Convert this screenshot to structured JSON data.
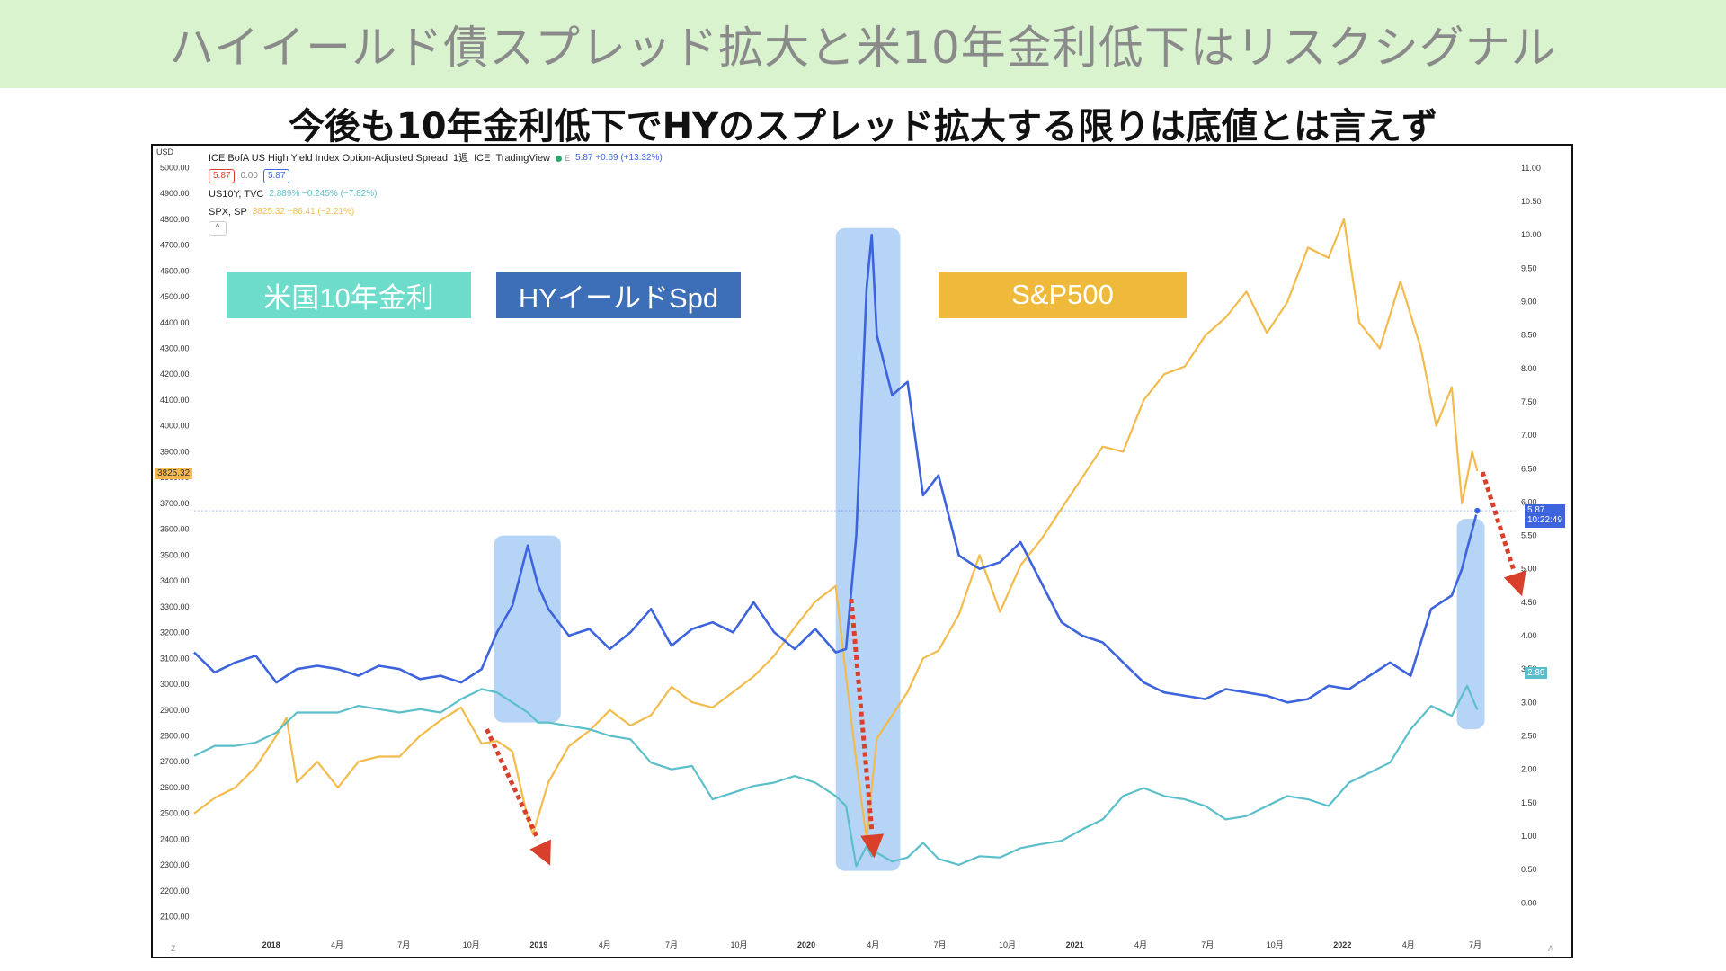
{
  "banner": {
    "title": "ハイイールド債スプレッド拡大と米10年金利低下はリスクシグナル"
  },
  "subtitle": "今後も10年金利低下でHYのスプレッド拡大する限りは底値とは言えず",
  "legend": {
    "currency": "USD",
    "main_title": "ICE BofA US High Yield Index Option-Adjusted Spread",
    "interval": "1週",
    "exchange": "ICE",
    "source": "TradingView",
    "e_label": "E",
    "main_change": "5.87 +0.69 (+13.32%)",
    "box_red": "5.87",
    "box_mid": "0.00",
    "box_blue": "5.87",
    "us10y_name": "US10Y, TVC",
    "us10y_values": "2.889%  −0.245% (−7.82%)",
    "spx_name": "SPX, SP",
    "spx_values": "3825.32  −86.41 (−2.21%)",
    "collapse": "^"
  },
  "labels": {
    "us10y": "米国10年金利",
    "hy": "HYイールドSpd",
    "spx": "S&P500"
  },
  "tags": {
    "spx_price": "3825.32",
    "hy_price": "5.87",
    "hy_time": "10:22:49",
    "us10y_price": "2.89"
  },
  "corners": {
    "left": "Z",
    "right": "A"
  },
  "colors": {
    "hy": "#3d64dc",
    "us10y": "#5bbfc9",
    "spx": "#f2bb4c",
    "highlight": "#a9cdf5",
    "arrow": "#d9402c",
    "banner_bg": "#d9f3cf",
    "label_us10y": "#6ddccb",
    "label_hy": "#3d6fb8",
    "label_spx": "#efba3b"
  },
  "chart_data": {
    "type": "line",
    "x_ticks": [
      "2018",
      "4月",
      "7月",
      "10月",
      "2019",
      "4月",
      "7月",
      "10月",
      "2020",
      "4月",
      "7月",
      "10月",
      "2021",
      "4月",
      "7月",
      "10月",
      "2022",
      "4月",
      "7月"
    ],
    "left_axis": {
      "ticks": [
        "2100.00",
        "2200.00",
        "2300.00",
        "2400.00",
        "2500.00",
        "2600.00",
        "2700.00",
        "2800.00",
        "2900.00",
        "3000.00",
        "3100.00",
        "3200.00",
        "3300.00",
        "3400.00",
        "3500.00",
        "3600.00",
        "3700.00",
        "3800.00",
        "3900.00",
        "4000.00",
        "4100.00",
        "4200.00",
        "4300.00",
        "4400.00",
        "4500.00",
        "4600.00",
        "4700.00",
        "4800.00",
        "4900.00",
        "5000.00"
      ],
      "ylim": [
        2050,
        5050
      ]
    },
    "right_axis": {
      "ticks": [
        "0.00",
        "0.50",
        "1.00",
        "1.50",
        "2.00",
        "2.50",
        "3.00",
        "3.50",
        "4.00",
        "4.50",
        "5.00",
        "5.50",
        "6.00",
        "6.50",
        "7.00",
        "7.50",
        "8.00",
        "8.50",
        "9.00",
        "9.50",
        "10.00",
        "10.50",
        "11.00"
      ],
      "ylim": [
        -0.4,
        11.2
      ]
    },
    "series": [
      {
        "name": "ICE BofA US High Yield Index Option-Adjusted Spread",
        "axis": "right",
        "x": [
          "2017-09-18",
          "2017-10-16",
          "2017-11-13",
          "2017-12-11",
          "2018-01-08",
          "2018-02-05",
          "2018-03-05",
          "2018-04-02",
          "2018-04-30",
          "2018-05-28",
          "2018-06-25",
          "2018-07-23",
          "2018-08-20",
          "2018-09-17",
          "2018-10-15",
          "2018-11-05",
          "2018-11-26",
          "2018-12-17",
          "2018-12-31",
          "2019-01-14",
          "2019-02-11",
          "2019-03-11",
          "2019-04-08",
          "2019-05-06",
          "2019-06-03",
          "2019-07-01",
          "2019-07-29",
          "2019-08-26",
          "2019-09-23",
          "2019-10-21",
          "2019-11-18",
          "2019-12-16",
          "2020-01-13",
          "2020-02-10",
          "2020-02-24",
          "2020-03-09",
          "2020-03-23",
          "2020-03-30",
          "2020-04-06",
          "2020-04-27",
          "2020-05-18",
          "2020-06-08",
          "2020-06-29",
          "2020-07-27",
          "2020-08-24",
          "2020-09-21",
          "2020-10-19",
          "2020-11-16",
          "2020-12-14",
          "2021-01-11",
          "2021-02-08",
          "2021-03-08",
          "2021-04-05",
          "2021-05-03",
          "2021-05-31",
          "2021-06-28",
          "2021-07-26",
          "2021-08-23",
          "2021-09-20",
          "2021-10-18",
          "2021-11-15",
          "2021-12-13",
          "2022-01-10",
          "2022-02-07",
          "2022-03-07",
          "2022-04-04",
          "2022-05-02",
          "2022-05-30",
          "2022-06-13",
          "2022-06-20",
          "2022-07-04"
        ],
        "y": [
          3.75,
          3.45,
          3.6,
          3.7,
          3.3,
          3.5,
          3.55,
          3.5,
          3.4,
          3.55,
          3.5,
          3.35,
          3.4,
          3.3,
          3.5,
          4.05,
          4.45,
          5.35,
          4.75,
          4.4,
          4.0,
          4.1,
          3.8,
          4.05,
          4.4,
          3.85,
          4.1,
          4.2,
          4.05,
          4.5,
          4.05,
          3.8,
          4.1,
          3.75,
          3.8,
          5.5,
          9.2,
          10.0,
          8.5,
          7.6,
          7.8,
          6.1,
          6.4,
          5.2,
          5.0,
          5.1,
          5.4,
          4.8,
          4.2,
          4.0,
          3.9,
          3.6,
          3.3,
          3.15,
          3.1,
          3.05,
          3.2,
          3.15,
          3.1,
          3.0,
          3.05,
          3.25,
          3.2,
          3.4,
          3.6,
          3.4,
          4.4,
          4.6,
          5.0,
          5.3,
          5.87
        ]
      },
      {
        "name": "US10Y, TVC",
        "axis": "right",
        "x": [
          "2017-09-18",
          "2017-10-16",
          "2017-11-13",
          "2017-12-11",
          "2018-01-08",
          "2018-02-05",
          "2018-03-05",
          "2018-04-02",
          "2018-04-30",
          "2018-05-28",
          "2018-06-25",
          "2018-07-23",
          "2018-08-20",
          "2018-09-17",
          "2018-10-15",
          "2018-11-05",
          "2018-11-26",
          "2018-12-17",
          "2018-12-31",
          "2019-01-14",
          "2019-02-11",
          "2019-03-11",
          "2019-04-08",
          "2019-05-06",
          "2019-06-03",
          "2019-07-01",
          "2019-07-29",
          "2019-08-26",
          "2019-09-23",
          "2019-10-21",
          "2019-11-18",
          "2019-12-16",
          "2020-01-13",
          "2020-02-10",
          "2020-02-24",
          "2020-03-09",
          "2020-03-23",
          "2020-03-30",
          "2020-04-06",
          "2020-04-27",
          "2020-05-18",
          "2020-06-08",
          "2020-06-29",
          "2020-07-27",
          "2020-08-24",
          "2020-09-21",
          "2020-10-19",
          "2020-11-16",
          "2020-12-14",
          "2021-01-11",
          "2021-02-08",
          "2021-03-08",
          "2021-04-05",
          "2021-05-03",
          "2021-05-31",
          "2021-06-28",
          "2021-07-26",
          "2021-08-23",
          "2021-09-20",
          "2021-10-18",
          "2021-11-15",
          "2021-12-13",
          "2022-01-10",
          "2022-02-07",
          "2022-03-07",
          "2022-04-04",
          "2022-05-02",
          "2022-05-30",
          "2022-06-13",
          "2022-06-20",
          "2022-07-04"
        ],
        "y": [
          2.2,
          2.35,
          2.35,
          2.4,
          2.55,
          2.85,
          2.85,
          2.85,
          2.95,
          2.9,
          2.85,
          2.9,
          2.85,
          3.05,
          3.2,
          3.15,
          3.0,
          2.85,
          2.7,
          2.7,
          2.65,
          2.6,
          2.5,
          2.45,
          2.1,
          2.0,
          2.05,
          1.55,
          1.65,
          1.75,
          1.8,
          1.9,
          1.8,
          1.6,
          1.45,
          0.55,
          0.85,
          0.7,
          0.75,
          0.62,
          0.68,
          0.9,
          0.66,
          0.57,
          0.7,
          0.68,
          0.82,
          0.88,
          0.93,
          1.1,
          1.25,
          1.6,
          1.72,
          1.6,
          1.55,
          1.45,
          1.25,
          1.3,
          1.45,
          1.6,
          1.55,
          1.45,
          1.8,
          1.95,
          2.1,
          2.6,
          2.95,
          2.8,
          3.1,
          3.25,
          2.89
        ]
      },
      {
        "name": "SPX, SP",
        "axis": "left",
        "x": [
          "2017-09-18",
          "2017-10-16",
          "2017-11-13",
          "2017-12-11",
          "2018-01-08",
          "2018-01-22",
          "2018-02-05",
          "2018-03-05",
          "2018-04-02",
          "2018-04-30",
          "2018-05-28",
          "2018-06-25",
          "2018-07-23",
          "2018-08-20",
          "2018-09-17",
          "2018-10-15",
          "2018-11-05",
          "2018-11-26",
          "2018-12-17",
          "2018-12-24",
          "2019-01-14",
          "2019-02-11",
          "2019-03-11",
          "2019-04-08",
          "2019-05-06",
          "2019-06-03",
          "2019-07-01",
          "2019-07-29",
          "2019-08-26",
          "2019-09-23",
          "2019-10-21",
          "2019-11-18",
          "2019-12-16",
          "2020-01-13",
          "2020-02-10",
          "2020-02-24",
          "2020-03-09",
          "2020-03-23",
          "2020-04-06",
          "2020-04-27",
          "2020-05-18",
          "2020-06-08",
          "2020-06-29",
          "2020-07-27",
          "2020-08-24",
          "2020-09-21",
          "2020-10-19",
          "2020-11-16",
          "2020-12-14",
          "2021-01-11",
          "2021-02-08",
          "2021-03-08",
          "2021-04-05",
          "2021-05-03",
          "2021-05-31",
          "2021-06-28",
          "2021-07-26",
          "2021-08-23",
          "2021-09-20",
          "2021-10-18",
          "2021-11-15",
          "2021-12-13",
          "2022-01-03",
          "2022-01-24",
          "2022-02-21",
          "2022-03-21",
          "2022-04-18",
          "2022-05-09",
          "2022-05-30",
          "2022-06-13",
          "2022-06-27",
          "2022-07-04"
        ],
        "y": [
          2500,
          2560,
          2600,
          2680,
          2800,
          2870,
          2620,
          2700,
          2600,
          2700,
          2720,
          2720,
          2800,
          2860,
          2910,
          2770,
          2780,
          2740,
          2480,
          2420,
          2620,
          2760,
          2820,
          2900,
          2840,
          2880,
          2990,
          2930,
          2910,
          2970,
          3030,
          3110,
          3220,
          3320,
          3380,
          3030,
          2700,
          2400,
          2790,
          2880,
          2970,
          3100,
          3130,
          3270,
          3500,
          3280,
          3460,
          3560,
          3680,
          3800,
          3920,
          3900,
          4100,
          4200,
          4230,
          4350,
          4420,
          4520,
          4360,
          4480,
          4690,
          4650,
          4800,
          4400,
          4300,
          4560,
          4300,
          4000,
          4150,
          3700,
          3900,
          3825.32
        ]
      }
    ]
  }
}
